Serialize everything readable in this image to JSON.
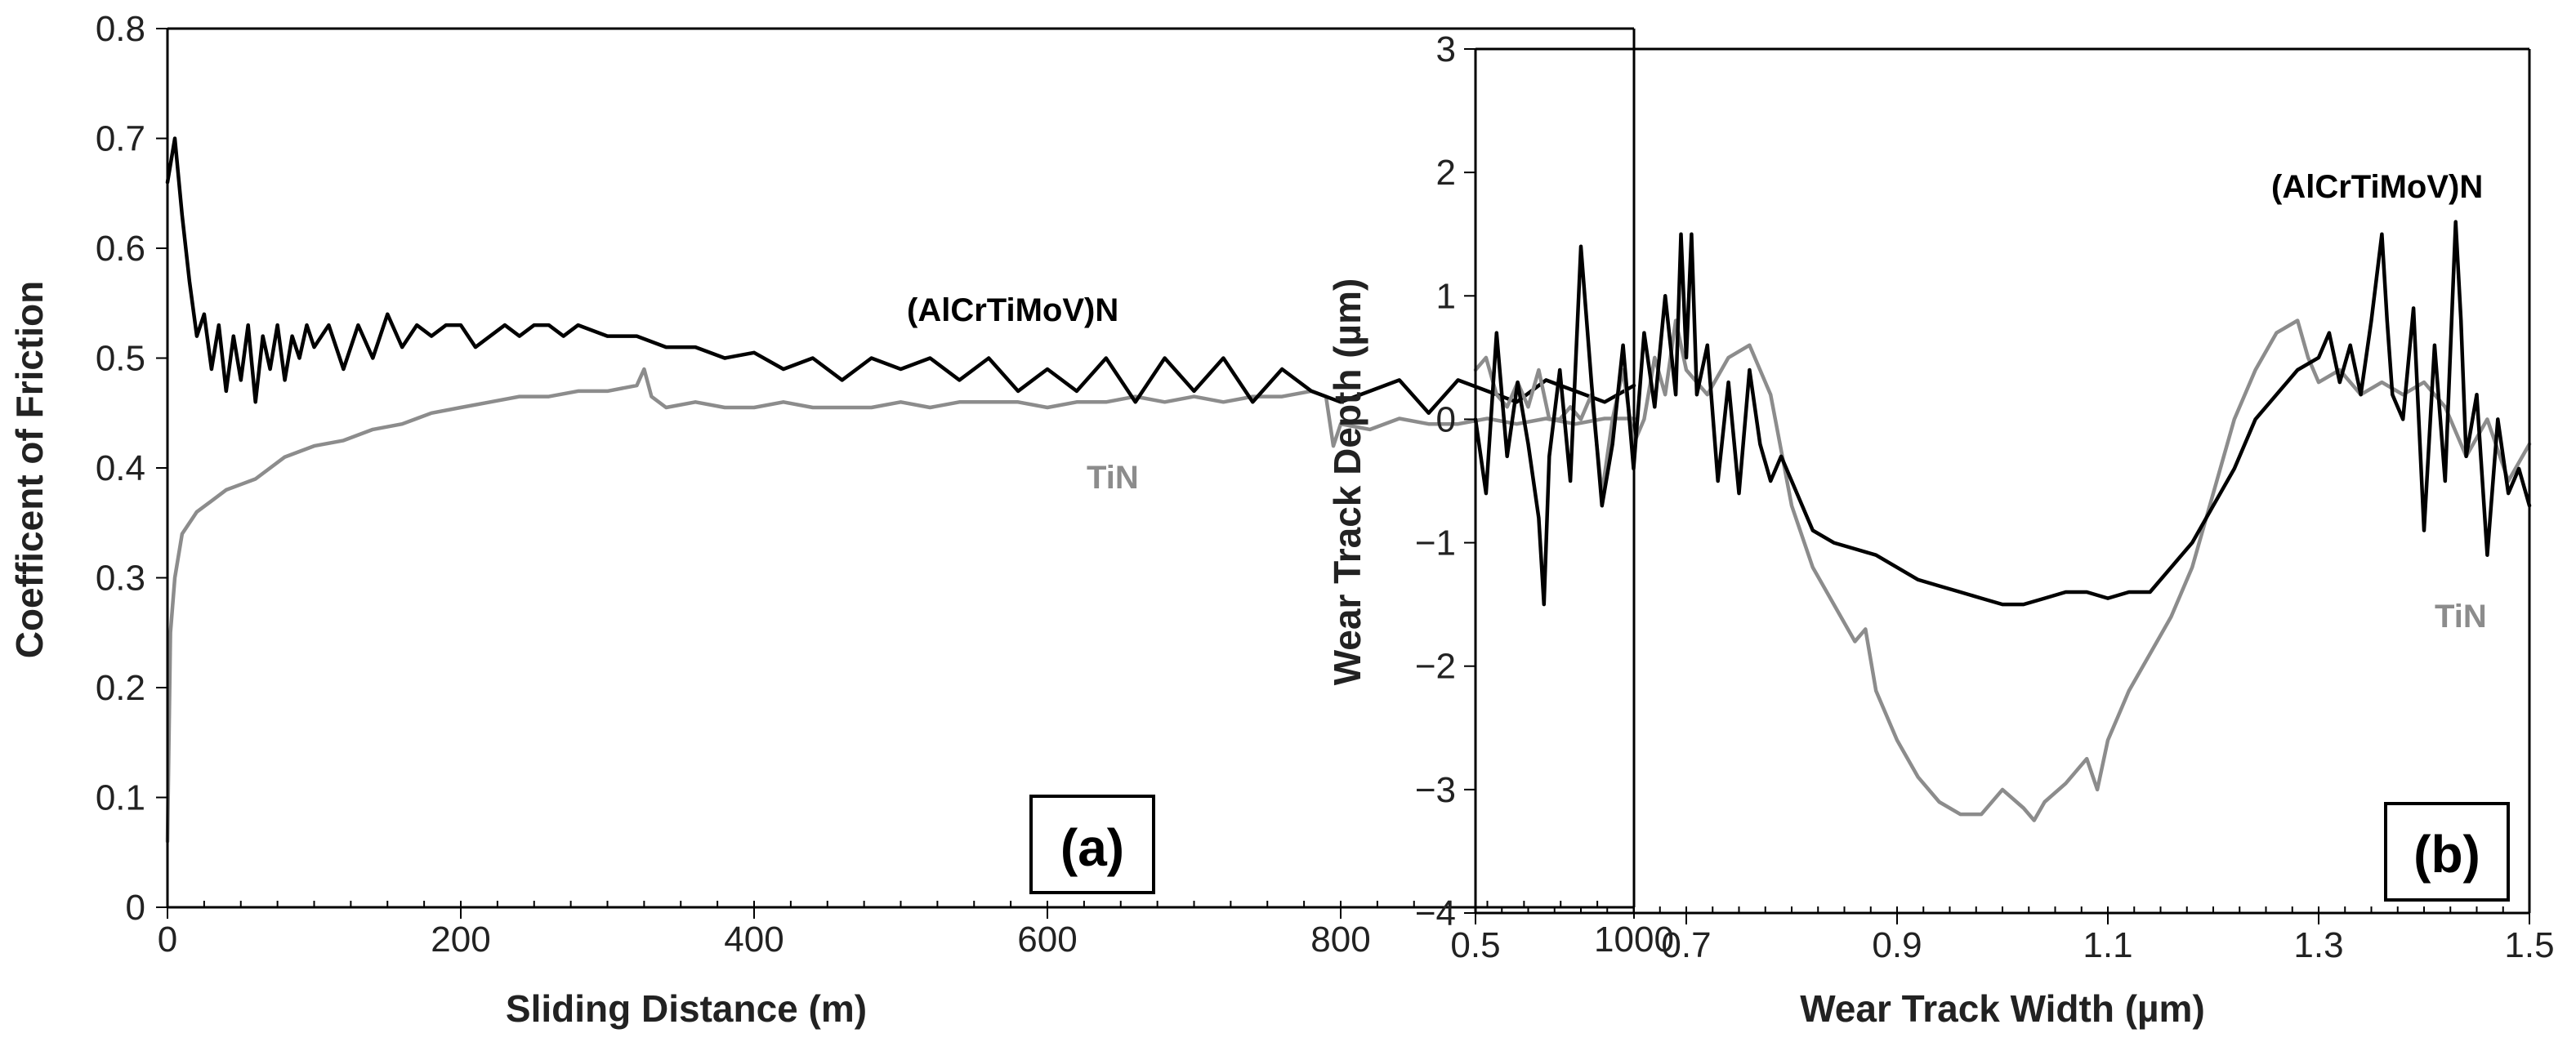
{
  "chart_data": [
    {
      "type": "line",
      "panel_label": "(a)",
      "xlabel": "Sliding Distance (m)",
      "ylabel": "Coefficent of  Friction",
      "xlim": [
        0,
        1000
      ],
      "ylim": [
        0,
        0.8
      ],
      "xticks": [
        0,
        200,
        400,
        600,
        800,
        1000
      ],
      "xtick_labels": [
        "0",
        "200",
        "400",
        "600",
        "800",
        "1000"
      ],
      "yticks": [
        0,
        0.1,
        0.2,
        0.3,
        0.4,
        0.5,
        0.6,
        0.7,
        0.8
      ],
      "ytick_labels": [
        "0",
        "0.1",
        "0.2",
        "0.3",
        "0.4",
        "0.5",
        "0.6",
        "0.7",
        "0.8"
      ],
      "grid": false,
      "series": [
        {
          "name": "(AlCrTiMoV)N",
          "color": "#000000",
          "x": [
            0,
            5,
            10,
            15,
            20,
            25,
            30,
            35,
            40,
            45,
            50,
            55,
            60,
            65,
            70,
            75,
            80,
            85,
            90,
            95,
            100,
            110,
            120,
            130,
            140,
            150,
            160,
            170,
            180,
            190,
            200,
            210,
            220,
            230,
            240,
            250,
            260,
            270,
            280,
            290,
            300,
            320,
            340,
            360,
            380,
            400,
            420,
            440,
            460,
            480,
            500,
            520,
            540,
            560,
            580,
            600,
            620,
            640,
            660,
            680,
            700,
            720,
            740,
            760,
            780,
            800,
            820,
            840,
            860,
            880,
            900,
            920,
            940,
            960,
            980,
            1000
          ],
          "values": [
            0.66,
            0.7,
            0.63,
            0.57,
            0.52,
            0.54,
            0.49,
            0.53,
            0.47,
            0.52,
            0.48,
            0.53,
            0.46,
            0.52,
            0.49,
            0.53,
            0.48,
            0.52,
            0.5,
            0.53,
            0.51,
            0.53,
            0.49,
            0.53,
            0.5,
            0.54,
            0.51,
            0.53,
            0.52,
            0.53,
            0.53,
            0.51,
            0.52,
            0.53,
            0.52,
            0.53,
            0.53,
            0.52,
            0.53,
            0.525,
            0.52,
            0.52,
            0.51,
            0.51,
            0.5,
            0.505,
            0.49,
            0.5,
            0.48,
            0.5,
            0.49,
            0.5,
            0.48,
            0.5,
            0.47,
            0.49,
            0.47,
            0.5,
            0.46,
            0.5,
            0.47,
            0.5,
            0.46,
            0.49,
            0.47,
            0.46,
            0.47,
            0.48,
            0.45,
            0.48,
            0.47,
            0.46,
            0.48,
            0.47,
            0.46,
            0.475
          ]
        },
        {
          "name": "TiN",
          "color": "#8c8c8c",
          "x": [
            0,
            2,
            5,
            10,
            15,
            20,
            30,
            40,
            50,
            60,
            80,
            100,
            120,
            140,
            160,
            180,
            200,
            220,
            240,
            260,
            280,
            300,
            320,
            325,
            330,
            340,
            360,
            380,
            400,
            420,
            440,
            460,
            480,
            500,
            520,
            540,
            560,
            580,
            600,
            620,
            640,
            660,
            680,
            700,
            720,
            740,
            760,
            780,
            790,
            795,
            800,
            820,
            840,
            860,
            880,
            900,
            920,
            940,
            960,
            980,
            1000
          ],
          "values": [
            0.06,
            0.25,
            0.3,
            0.34,
            0.35,
            0.36,
            0.37,
            0.38,
            0.385,
            0.39,
            0.41,
            0.42,
            0.425,
            0.435,
            0.44,
            0.45,
            0.455,
            0.46,
            0.465,
            0.465,
            0.47,
            0.47,
            0.475,
            0.49,
            0.465,
            0.455,
            0.46,
            0.455,
            0.455,
            0.46,
            0.455,
            0.455,
            0.455,
            0.46,
            0.455,
            0.46,
            0.46,
            0.46,
            0.455,
            0.46,
            0.46,
            0.465,
            0.46,
            0.465,
            0.46,
            0.465,
            0.465,
            0.47,
            0.465,
            0.42,
            0.44,
            0.435,
            0.445,
            0.44,
            0.44,
            0.445,
            0.44,
            0.445,
            0.44,
            0.445,
            0.445
          ]
        }
      ],
      "annotations": [
        {
          "text": "(AlCrTiMoV)N",
          "series": "(AlCrTiMoV)N"
        },
        {
          "text": "TiN",
          "series": "TiN"
        }
      ]
    },
    {
      "type": "line",
      "panel_label": "(b)",
      "xlabel": "Wear Track Width (µm)",
      "ylabel": "Wear Track Depth (µm)",
      "xlim": [
        0.5,
        1.5
      ],
      "ylim": [
        -4,
        3
      ],
      "xticks": [
        0.5,
        0.7,
        0.9,
        1.1,
        1.3,
        1.5
      ],
      "xtick_labels": [
        "0.5",
        "0.7",
        "0.9",
        "1.1",
        "1.3",
        "1.5"
      ],
      "yticks": [
        -4,
        -3,
        -2,
        -1,
        0,
        1,
        2,
        3
      ],
      "ytick_labels": [
        "−4",
        "−3",
        "−2",
        "−1",
        "0",
        "1",
        "2",
        "3"
      ],
      "grid": false,
      "series": [
        {
          "name": "(AlCrTiMoV)N",
          "color": "#000000",
          "x": [
            0.5,
            0.51,
            0.52,
            0.53,
            0.54,
            0.55,
            0.56,
            0.565,
            0.57,
            0.58,
            0.59,
            0.6,
            0.61,
            0.62,
            0.63,
            0.64,
            0.65,
            0.66,
            0.67,
            0.68,
            0.69,
            0.695,
            0.7,
            0.705,
            0.71,
            0.72,
            0.73,
            0.74,
            0.75,
            0.76,
            0.77,
            0.78,
            0.79,
            0.8,
            0.82,
            0.84,
            0.86,
            0.88,
            0.9,
            0.92,
            0.94,
            0.96,
            0.98,
            1.0,
            1.02,
            1.04,
            1.06,
            1.08,
            1.1,
            1.12,
            1.14,
            1.16,
            1.18,
            1.2,
            1.22,
            1.24,
            1.26,
            1.28,
            1.3,
            1.31,
            1.32,
            1.33,
            1.34,
            1.35,
            1.36,
            1.365,
            1.37,
            1.38,
            1.39,
            1.4,
            1.41,
            1.42,
            1.43,
            1.435,
            1.44,
            1.45,
            1.46,
            1.47,
            1.48,
            1.49,
            1.5
          ],
          "values": [
            0.0,
            -0.6,
            0.7,
            -0.3,
            0.3,
            -0.2,
            -0.8,
            -1.5,
            -0.3,
            0.4,
            -0.5,
            1.4,
            0.3,
            -0.7,
            -0.2,
            0.6,
            -0.4,
            0.7,
            0.1,
            1.0,
            0.2,
            1.5,
            0.5,
            1.5,
            0.2,
            0.6,
            -0.5,
            0.3,
            -0.6,
            0.4,
            -0.2,
            -0.5,
            -0.3,
            -0.5,
            -0.9,
            -1.0,
            -1.05,
            -1.1,
            -1.2,
            -1.3,
            -1.35,
            -1.4,
            -1.45,
            -1.5,
            -1.5,
            -1.45,
            -1.4,
            -1.4,
            -1.45,
            -1.4,
            -1.4,
            -1.2,
            -1.0,
            -0.7,
            -0.4,
            0.0,
            0.2,
            0.4,
            0.5,
            0.7,
            0.3,
            0.6,
            0.2,
            0.8,
            1.5,
            0.8,
            0.2,
            0.0,
            0.9,
            -0.9,
            0.6,
            -0.5,
            1.6,
            0.8,
            -0.3,
            0.2,
            -1.1,
            0.0,
            -0.6,
            -0.4,
            -0.7
          ]
        },
        {
          "name": "TiN",
          "color": "#8c8c8c",
          "x": [
            0.5,
            0.51,
            0.52,
            0.53,
            0.54,
            0.55,
            0.56,
            0.57,
            0.58,
            0.59,
            0.6,
            0.61,
            0.62,
            0.63,
            0.64,
            0.65,
            0.66,
            0.67,
            0.68,
            0.69,
            0.7,
            0.72,
            0.74,
            0.76,
            0.78,
            0.8,
            0.82,
            0.84,
            0.86,
            0.87,
            0.88,
            0.9,
            0.92,
            0.94,
            0.96,
            0.98,
            1.0,
            1.02,
            1.03,
            1.04,
            1.06,
            1.08,
            1.09,
            1.1,
            1.11,
            1.12,
            1.14,
            1.16,
            1.18,
            1.2,
            1.22,
            1.24,
            1.26,
            1.28,
            1.29,
            1.3,
            1.32,
            1.34,
            1.36,
            1.38,
            1.4,
            1.42,
            1.44,
            1.46,
            1.48,
            1.5
          ],
          "values": [
            0.4,
            0.5,
            0.2,
            0.1,
            0.3,
            0.1,
            0.4,
            0.0,
            0.0,
            0.1,
            0.0,
            0.2,
            -0.6,
            0.0,
            0.4,
            -0.2,
            0.0,
            0.5,
            0.2,
            0.8,
            0.4,
            0.2,
            0.5,
            0.6,
            0.2,
            -0.7,
            -1.2,
            -1.5,
            -1.8,
            -1.7,
            -2.2,
            -2.6,
            -2.9,
            -3.1,
            -3.2,
            -3.2,
            -3.0,
            -3.15,
            -3.25,
            -3.1,
            -2.95,
            -2.75,
            -3.0,
            -2.6,
            -2.4,
            -2.2,
            -1.9,
            -1.6,
            -1.2,
            -0.6,
            0.0,
            0.4,
            0.7,
            0.8,
            0.5,
            0.3,
            0.4,
            0.2,
            0.3,
            0.2,
            0.3,
            0.1,
            -0.3,
            0.0,
            -0.5,
            -0.2
          ]
        }
      ],
      "annotations": [
        {
          "text": "(AlCrTiMoV)N",
          "series": "(AlCrTiMoV)N"
        },
        {
          "text": "TiN",
          "series": "TiN"
        }
      ]
    }
  ]
}
